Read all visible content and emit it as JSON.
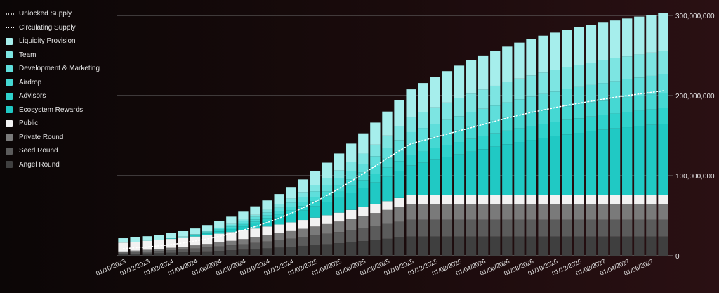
{
  "chart_data": {
    "type": "bar",
    "stacked": true,
    "legend_position": "left",
    "grid": true,
    "ylim": [
      0,
      300000000
    ],
    "y_ticks": [
      0,
      100000000,
      200000000,
      300000000
    ],
    "y_tick_labels": [
      "0",
      "100,000,000",
      "200,000,000",
      "300,000,000"
    ],
    "x_tick_labels": [
      "01/10/2023",
      "01/12/2023",
      "01/02/2024",
      "01/04/2024",
      "01/06/2024",
      "01/08/2024",
      "01/10/2024",
      "01/12/2024",
      "01/02/2025",
      "01/04/2025",
      "01/06/2025",
      "01/08/2025",
      "01/10/2025",
      "01/12/2025",
      "01/02/2026",
      "01/04/2026",
      "01/06/2026",
      "01/08/2026",
      "01/10/2026",
      "01/12/2026",
      "01/02/2027",
      "01/04/2027",
      "01/06/2027"
    ],
    "x_tick_every": 2,
    "categories": [
      "10/2023",
      "11/2023",
      "12/2023",
      "01/2024",
      "02/2024",
      "03/2024",
      "04/2024",
      "05/2024",
      "06/2024",
      "07/2024",
      "08/2024",
      "09/2024",
      "10/2024",
      "11/2024",
      "12/2024",
      "01/2025",
      "02/2025",
      "03/2025",
      "04/2025",
      "05/2025",
      "06/2025",
      "07/2025",
      "08/2025",
      "09/2025",
      "10/2025",
      "11/2025",
      "12/2025",
      "01/2026",
      "02/2026",
      "03/2026",
      "04/2026",
      "05/2026",
      "06/2026",
      "07/2026",
      "08/2026",
      "09/2026",
      "10/2026",
      "11/2026",
      "12/2026",
      "01/2027",
      "02/2027",
      "03/2027",
      "04/2027",
      "05/2027",
      "06/2027",
      "07/2027"
    ],
    "series": [
      {
        "name": "Angel Round",
        "color": "#3f3f3f",
        "values": [
          2000000,
          2400000,
          2800000,
          3200000,
          3700000,
          4200000,
          4800000,
          5400000,
          6100000,
          6800000,
          7600000,
          8400000,
          9300000,
          10200000,
          11200000,
          12300000,
          13400000,
          14500000,
          15700000,
          17000000,
          18300000,
          19700000,
          21200000,
          22600000,
          24000000,
          24000000,
          24000000,
          24000000,
          24000000,
          24000000,
          24000000,
          24000000,
          24000000,
          24000000,
          24000000,
          24000000,
          24000000,
          24000000,
          24000000,
          24000000,
          24000000,
          24000000,
          24000000,
          24000000,
          24000000,
          24000000
        ]
      },
      {
        "name": "Seed Round",
        "color": "#5b5b5b",
        "values": [
          1800000,
          2100000,
          2500000,
          2900000,
          3300000,
          3800000,
          4300000,
          4900000,
          5500000,
          6200000,
          6900000,
          7700000,
          8500000,
          9300000,
          10200000,
          11100000,
          12000000,
          13000000,
          14000000,
          15100000,
          16300000,
          17500000,
          18700000,
          20000000,
          21000000,
          21000000,
          21000000,
          21000000,
          21000000,
          21000000,
          21000000,
          21000000,
          21000000,
          21000000,
          21000000,
          21000000,
          21000000,
          21000000,
          21000000,
          21000000,
          21000000,
          21000000,
          21000000,
          21000000,
          21000000,
          21000000
        ]
      },
      {
        "name": "Private Round",
        "color": "#7a7a7a",
        "values": [
          1600000,
          1900000,
          2200000,
          2600000,
          3000000,
          3400000,
          3900000,
          4400000,
          5000000,
          5600000,
          6300000,
          7000000,
          7800000,
          8600000,
          9400000,
          10300000,
          11200000,
          12100000,
          13100000,
          14100000,
          15100000,
          16200000,
          17300000,
          18400000,
          19500000,
          19500000,
          19500000,
          19500000,
          19500000,
          19500000,
          19500000,
          19500000,
          19500000,
          19500000,
          19500000,
          19500000,
          19500000,
          19500000,
          19500000,
          19500000,
          19500000,
          19500000,
          19500000,
          19500000,
          19500000,
          19500000
        ]
      },
      {
        "name": "Public",
        "color": "#f2f2f2",
        "values": [
          11000000,
          11000000,
          11000000,
          11000000,
          11000000,
          11000000,
          11000000,
          11000000,
          11000000,
          11000000,
          11000000,
          11000000,
          11000000,
          11000000,
          11000000,
          11000000,
          11000000,
          11000000,
          11000000,
          11000000,
          11000000,
          11000000,
          11000000,
          11000000,
          11000000,
          11000000,
          11000000,
          11000000,
          11000000,
          11000000,
          11000000,
          11000000,
          11000000,
          11000000,
          11000000,
          11000000,
          11000000,
          11000000,
          11000000,
          11000000,
          11000000,
          11000000,
          11000000,
          11000000,
          11000000,
          11000000
        ]
      },
      {
        "name": "Ecosystem Rewards",
        "color": "#20c9c4",
        "values": [
          0,
          0,
          0,
          300000,
          700000,
          1100000,
          1600000,
          2200000,
          2900000,
          3700000,
          4700000,
          5800000,
          7100000,
          8600000,
          10200000,
          12000000,
          14000000,
          16200000,
          18600000,
          21200000,
          24000000,
          27000000,
          30200000,
          33500000,
          37000000,
          40500000,
          44000000,
          47500000,
          51000000,
          54400000,
          57700000,
          60800000,
          63800000,
          66600000,
          69200000,
          71600000,
          73900000,
          76000000,
          78000000,
          79900000,
          81700000,
          83400000,
          85000000,
          86500000,
          87900000,
          89200000
        ]
      },
      {
        "name": "Advisors",
        "color": "#2fd2cc",
        "values": [
          0,
          0,
          0,
          0,
          0,
          0,
          300000,
          700000,
          1200000,
          1700000,
          2200000,
          2800000,
          3400000,
          4000000,
          4700000,
          5400000,
          6200000,
          7000000,
          7900000,
          8800000,
          9800000,
          10800000,
          11800000,
          12800000,
          13800000,
          14300000,
          14800000,
          15200000,
          15600000,
          16000000,
          16300000,
          16600000,
          16900000,
          17200000,
          17400000,
          17600000,
          17800000,
          18000000,
          18200000,
          18400000,
          18600000,
          18800000,
          19000000,
          19200000,
          19400000,
          19600000
        ]
      },
      {
        "name": "Airdrop",
        "color": "#45d8d3",
        "values": [
          0,
          0,
          0,
          0,
          0,
          200000,
          500000,
          900000,
          1300000,
          1700000,
          2200000,
          2700000,
          3200000,
          3800000,
          4400000,
          5100000,
          5800000,
          6600000,
          7400000,
          8300000,
          9200000,
          10100000,
          11000000,
          11900000,
          12800000,
          13300000,
          13800000,
          14200000,
          14600000,
          15000000,
          15300000,
          15600000,
          15900000,
          16200000,
          16500000,
          16800000,
          17000000,
          17200000,
          17400000,
          17600000,
          17800000,
          18000000,
          18200000,
          18400000,
          18600000,
          18800000
        ]
      },
      {
        "name": "Development & Marketing",
        "color": "#5fdedb",
        "values": [
          0,
          0,
          0,
          0,
          0,
          200000,
          500000,
          900000,
          1400000,
          1900000,
          2500000,
          3100000,
          3800000,
          4500000,
          5300000,
          6100000,
          7000000,
          7900000,
          8900000,
          9900000,
          11000000,
          12100000,
          13200000,
          14300000,
          15300000,
          16000000,
          16600000,
          17200000,
          17700000,
          18200000,
          18700000,
          19100000,
          19500000,
          19900000,
          20300000,
          20600000,
          20900000,
          21200000,
          21500000,
          21800000,
          22100000,
          22400000,
          22700000,
          23000000,
          23200000,
          23400000
        ]
      },
      {
        "name": "Team",
        "color": "#7de5e2",
        "values": [
          0,
          0,
          0,
          0,
          0,
          0,
          0,
          300000,
          700000,
          1200000,
          1800000,
          2500000,
          3300000,
          4200000,
          5200000,
          6300000,
          7500000,
          8800000,
          10100000,
          11500000,
          12900000,
          14300000,
          15700000,
          17100000,
          18400000,
          19600000,
          20700000,
          21700000,
          22600000,
          23400000,
          24100000,
          24700000,
          25300000,
          25800000,
          26300000,
          26700000,
          27100000,
          27400000,
          27700000,
          28000000,
          28200000,
          28400000,
          28600000,
          28800000,
          29000000,
          29200000
        ]
      },
      {
        "name": "Liquidity Provision",
        "color": "#a6eeec",
        "values": [
          5500000,
          5700000,
          5900000,
          6200000,
          6500000,
          6800000,
          7200000,
          7700000,
          8300000,
          9000000,
          9800000,
          10700000,
          11700000,
          12900000,
          14200000,
          15700000,
          17300000,
          19100000,
          21000000,
          23100000,
          25300000,
          27600000,
          30000000,
          32500000,
          35000000,
          36500000,
          37900000,
          39200000,
          40400000,
          41500000,
          42500000,
          43400000,
          44200000,
          44900000,
          45500000,
          46000000,
          46400000,
          46700000,
          46900000,
          47000000,
          47100000,
          47200000,
          47200000,
          47200000,
          47200000,
          47200000
        ]
      }
    ],
    "lines": [
      {
        "name": "Unlocked Supply",
        "color": "#bdbdbd"
      },
      {
        "name": "Circulating Supply",
        "color": "#ffffff",
        "values": [
          9000000,
          10000000,
          11000000,
          12500000,
          14000000,
          16000000,
          18500000,
          21000000,
          24000000,
          28000000,
          32000000,
          36500000,
          41500000,
          47000000,
          53000000,
          60000000,
          67500000,
          75500000,
          84000000,
          93000000,
          102500000,
          112000000,
          121500000,
          131000000,
          140000000,
          144000000,
          148000000,
          152000000,
          156000000,
          160000000,
          164000000,
          168000000,
          172000000,
          175500000,
          179000000,
          182000000,
          185000000,
          188000000,
          190500000,
          193000000,
          195500000,
          198000000,
          200000000,
          202000000,
          204000000,
          206000000
        ]
      }
    ]
  }
}
